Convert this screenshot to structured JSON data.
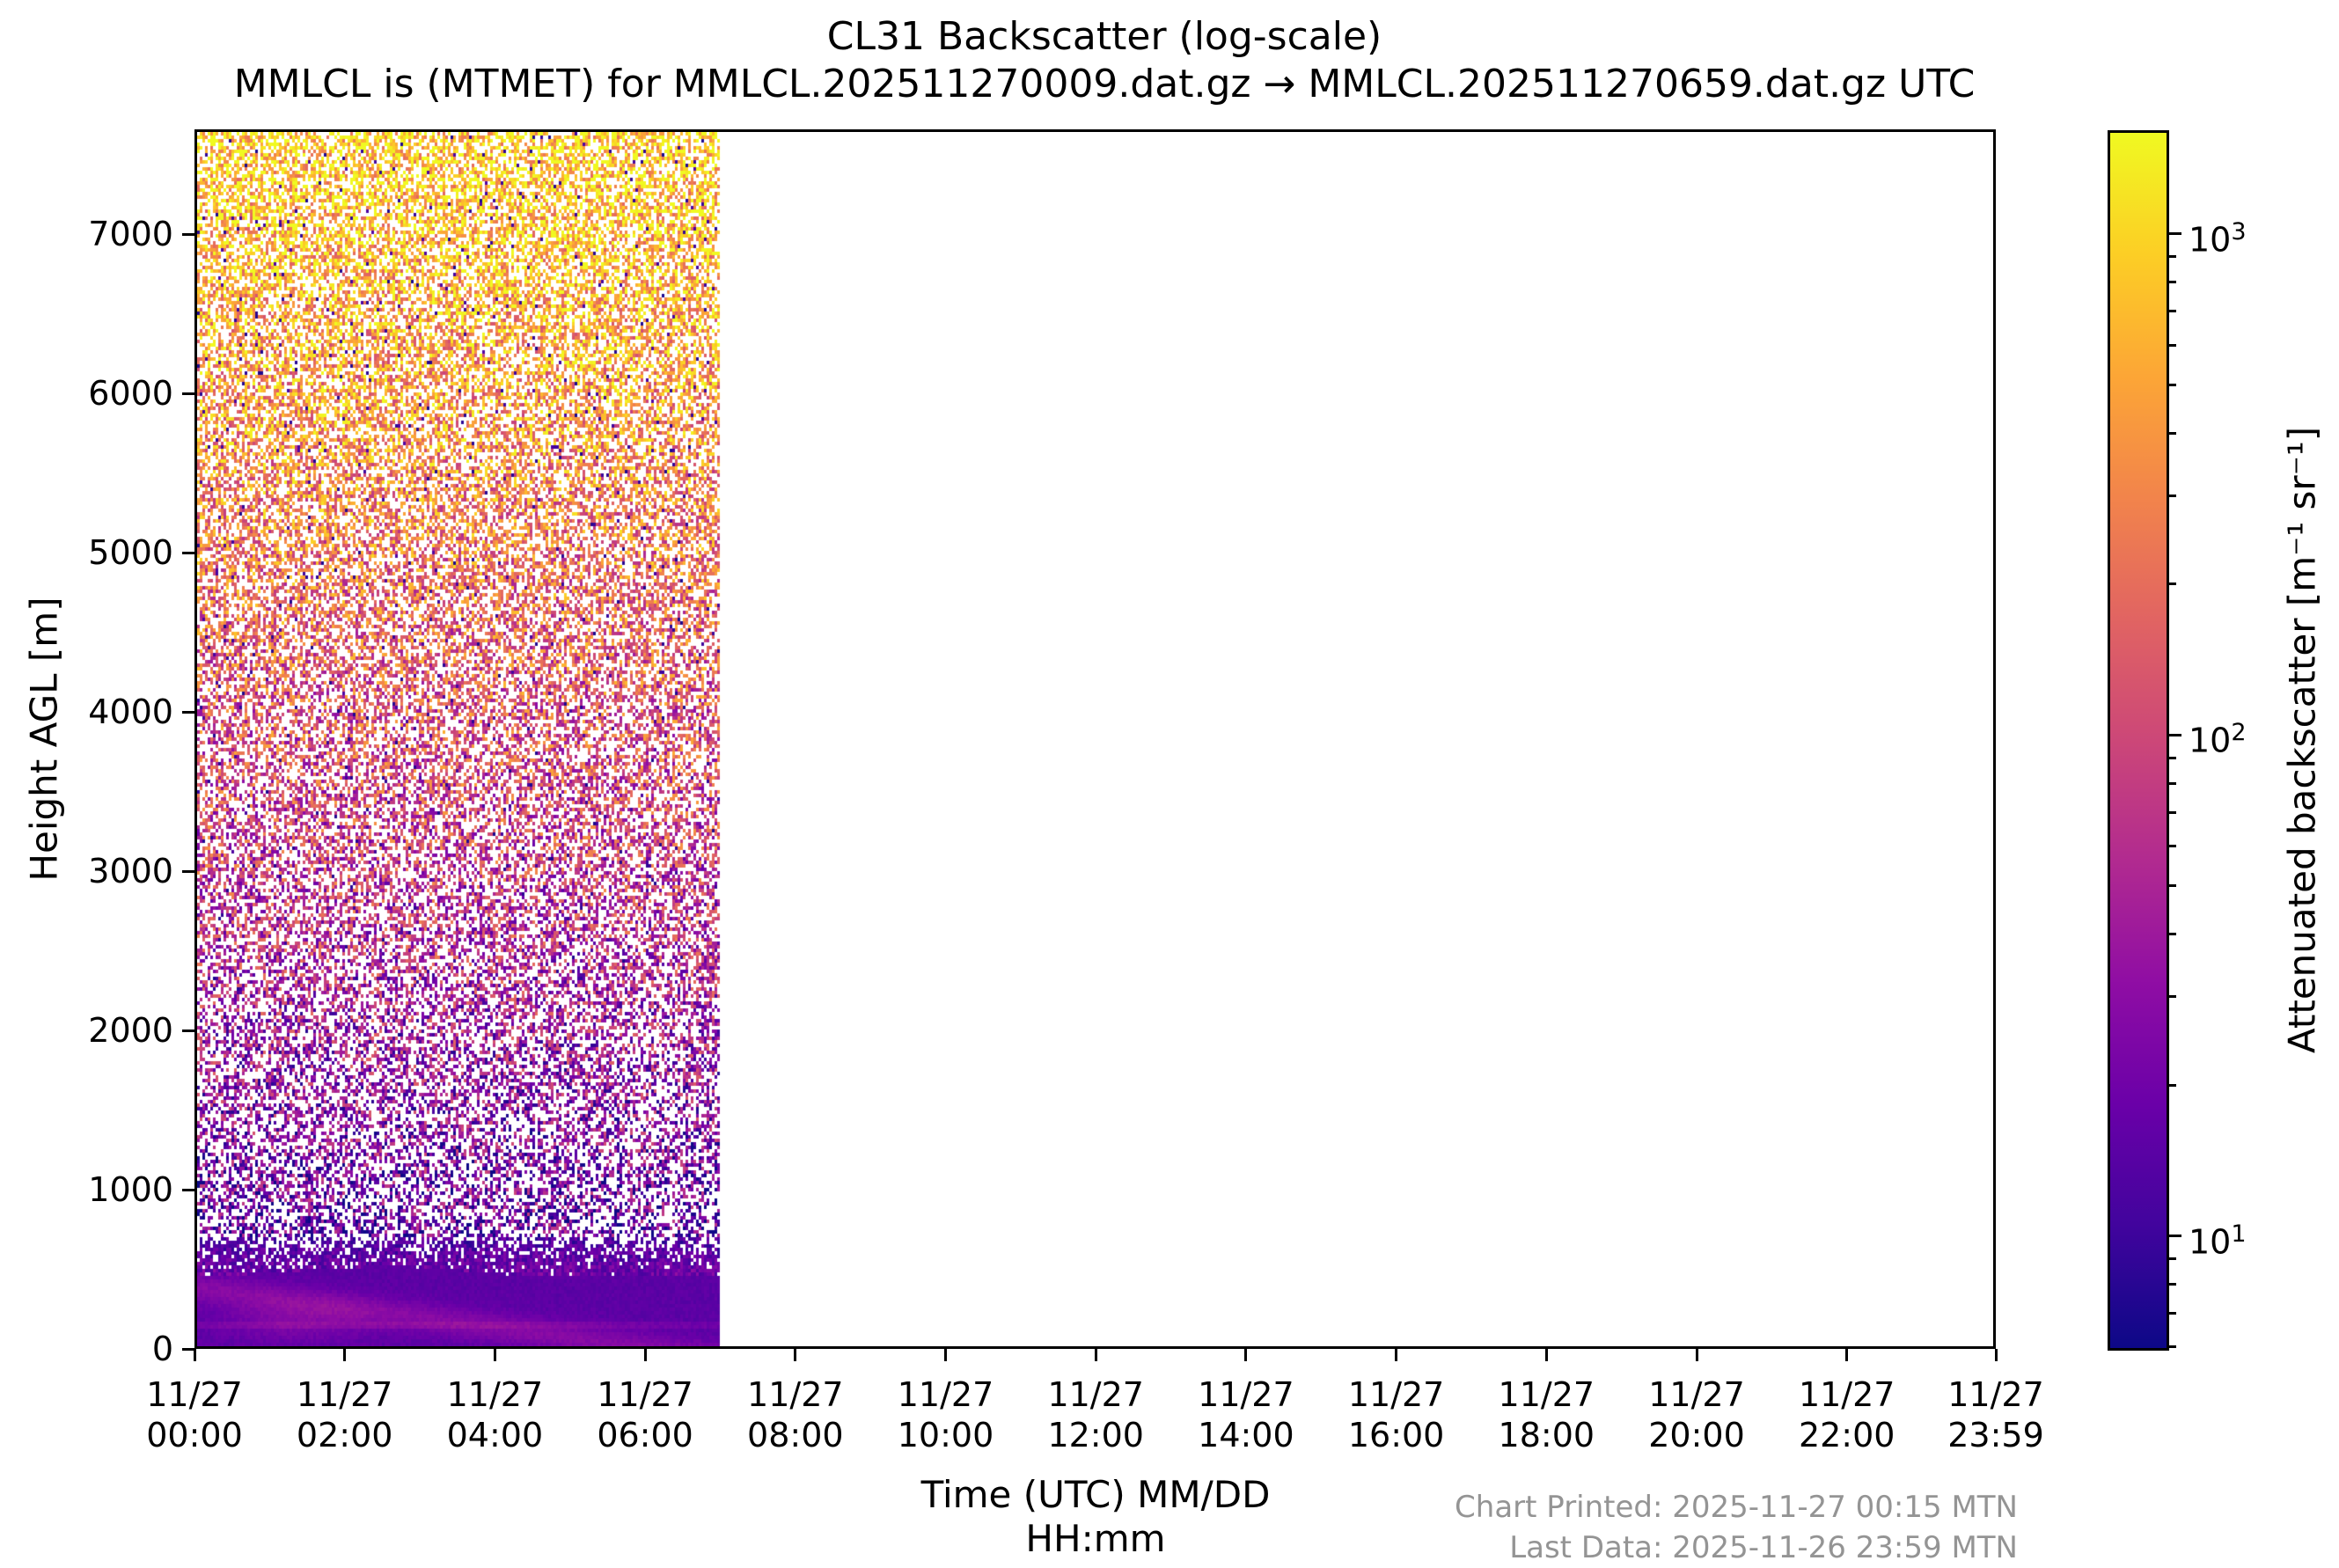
{
  "title": "CL31 Backscatter (log-scale)",
  "subtitle": "MMLCL is (MTMET) for MMLCL.202511270009.dat.gz → MMLCL.202511270659.dat.gz UTC",
  "y_axis": {
    "label": "Height AGL [m]",
    "ticks": [
      0,
      1000,
      2000,
      3000,
      4000,
      5000,
      6000,
      7000
    ],
    "max_m": 7660
  },
  "x_axis": {
    "label_line1": "Time (UTC) MM/DD",
    "label_line2": "HH:mm",
    "ticks": [
      {
        "date": "11/27",
        "time": "00:00",
        "minutes": 0
      },
      {
        "date": "11/27",
        "time": "02:00",
        "minutes": 120
      },
      {
        "date": "11/27",
        "time": "04:00",
        "minutes": 240
      },
      {
        "date": "11/27",
        "time": "06:00",
        "minutes": 360
      },
      {
        "date": "11/27",
        "time": "08:00",
        "minutes": 480
      },
      {
        "date": "11/27",
        "time": "10:00",
        "minutes": 600
      },
      {
        "date": "11/27",
        "time": "12:00",
        "minutes": 720
      },
      {
        "date": "11/27",
        "time": "14:00",
        "minutes": 840
      },
      {
        "date": "11/27",
        "time": "16:00",
        "minutes": 960
      },
      {
        "date": "11/27",
        "time": "18:00",
        "minutes": 1080
      },
      {
        "date": "11/27",
        "time": "20:00",
        "minutes": 1200
      },
      {
        "date": "11/27",
        "time": "22:00",
        "minutes": 1320
      },
      {
        "date": "11/27",
        "time": "23:59",
        "minutes": 1439
      }
    ]
  },
  "colorbar": {
    "label": "Attenuated backscatter [m⁻¹ sr⁻¹]",
    "scale": "log",
    "major_ticks": [
      {
        "value": 1000,
        "base": "10",
        "exp": "3"
      },
      {
        "value": 100,
        "base": "10",
        "exp": "2"
      },
      {
        "value": 10,
        "base": "10",
        "exp": "1"
      }
    ],
    "minor_tick_values": [
      6,
      7,
      8,
      9,
      20,
      30,
      40,
      50,
      60,
      70,
      80,
      90,
      200,
      300,
      400,
      500,
      600,
      700,
      800,
      900
    ],
    "vmin": 5.9,
    "vmax": 1610,
    "colormap": "plasma"
  },
  "footer": {
    "line1": "Chart Printed: 2025-11-27 00:15 MTN",
    "line2": "Last Data: 2025-11-26 23:59 MTN"
  },
  "colors": {
    "background": "#ffffff",
    "spine": "#000000",
    "footer_text": "#949494",
    "plasma_stops": [
      "#0d0887",
      "#41049d",
      "#6a00a8",
      "#8f0da4",
      "#b12a90",
      "#cc4778",
      "#e16462",
      "#f2844b",
      "#fca636",
      "#fcce25",
      "#f0f921"
    ]
  },
  "chart_data": {
    "type": "heatmap",
    "title": "CL31 Backscatter (log-scale)",
    "xlabel": "Time (UTC) MM/DD HH:mm",
    "ylabel": "Height AGL [m]",
    "x_tick_labels": [
      "11/27 00:00",
      "11/27 02:00",
      "11/27 04:00",
      "11/27 06:00",
      "11/27 08:00",
      "11/27 10:00",
      "11/27 12:00",
      "11/27 14:00",
      "11/27 16:00",
      "11/27 18:00",
      "11/27 20:00",
      "11/27 22:00",
      "11/27 23:59"
    ],
    "x_range_minutes": [
      0,
      1439
    ],
    "data_time_coverage": {
      "start": "11/27 00:00",
      "end": "11/27 06:59",
      "note": "heatmap pixels fill only 00:00–~07:00 UTC; rest of axis is blank white"
    },
    "y_range_m": [
      0,
      7660
    ],
    "y_ticks_m": [
      0,
      1000,
      2000,
      3000,
      4000,
      5000,
      6000,
      7000
    ],
    "value_scale": {
      "type": "log",
      "unit": "m⁻¹ sr⁻¹",
      "ticks": [
        10,
        100,
        1000
      ],
      "approx_range": [
        6,
        1600
      ]
    },
    "colormap": "plasma",
    "legend_position": "right vertical colorbar",
    "grid": false,
    "profile_summary": [
      {
        "height_m": "0-450",
        "value_range": "10-25",
        "appearance": "solid violet-purple boundary-layer signal; lighter pink streaks 00:00-02:00 near ground; thin orange ground-return dots along bottom axis"
      },
      {
        "height_m": "450-700",
        "value_range": "5-15",
        "appearance": "dense dark indigo speckle with increasing white gaps upward"
      },
      {
        "height_m": "700-2500",
        "value_range": "10-60",
        "appearance": "sparse purple/magenta noise speckle on white"
      },
      {
        "height_m": "2500-5500",
        "value_range": "50-300",
        "appearance": "pink/red noise speckle on white"
      },
      {
        "height_m": "5500-7660",
        "value_range": "300-1600",
        "appearance": "dense orange/yellow noise speckle, occasional dark specks"
      }
    ]
  }
}
